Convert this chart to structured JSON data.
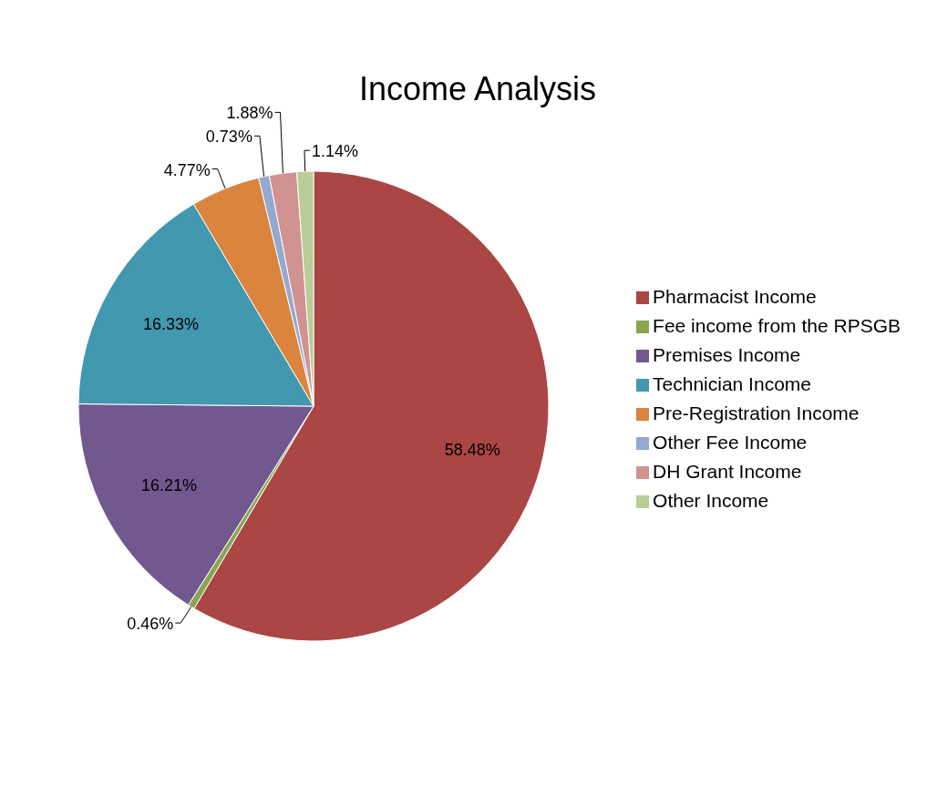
{
  "chart_data": {
    "type": "pie",
    "title": "Income Analysis",
    "categories": [
      "Pharmacist Income",
      "Fee income from the RPSGB",
      "Premises Income",
      "Technician Income",
      "Pre-Registration Income",
      "Other  Fee Income",
      "DH Grant Income",
      "Other Income"
    ],
    "values": [
      58.48,
      0.46,
      16.21,
      16.33,
      4.77,
      0.73,
      1.88,
      1.14
    ],
    "value_labels": [
      "58.48%",
      "0.46%",
      "16.21%",
      "16.33%",
      "4.77%",
      "0.73%",
      "1.88%",
      "1.14%"
    ],
    "colors": [
      "#aa4643",
      "#89a54e",
      "#71588f",
      "#4198af",
      "#db843d",
      "#93a9cf",
      "#d19392",
      "#b9cd96"
    ],
    "legend": "right"
  }
}
